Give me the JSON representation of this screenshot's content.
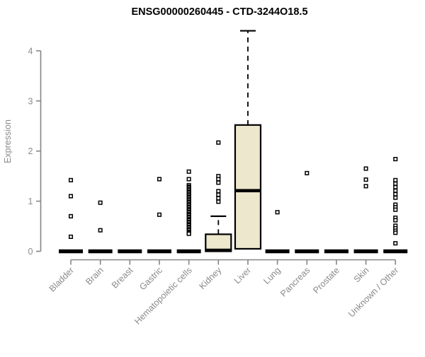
{
  "colors": {
    "title": "#000000",
    "axis": "#858585",
    "tick_text": "#8a8a8a",
    "box_fill": "#ece7cd",
    "box_stroke": "#000000",
    "point_stroke": "#000000",
    "point_fill": "#ffffff",
    "background": "#ffffff"
  },
  "chart_data": {
    "type": "boxplot",
    "title": "ENSG00000260445 - CTD-3244O18.5",
    "ylabel": "Expression",
    "xlabel": "",
    "ylim": [
      0,
      4.4
    ],
    "y_ticks": [
      0,
      1,
      2,
      3,
      4
    ],
    "grid": false,
    "legend": "none",
    "categories": [
      {
        "label": "Bladder",
        "box": {
          "q1": 0,
          "median": 0,
          "q3": 0,
          "whisker_high": null
        },
        "outliers": [
          1.42,
          1.1,
          0.7,
          0.29
        ]
      },
      {
        "label": "Brain",
        "box": {
          "q1": 0,
          "median": 0,
          "q3": 0,
          "whisker_high": null
        },
        "outliers": [
          0.97,
          0.42
        ]
      },
      {
        "label": "Breast",
        "box": {
          "q1": 0,
          "median": 0,
          "q3": 0,
          "whisker_high": null
        },
        "outliers": []
      },
      {
        "label": "Gastric",
        "box": {
          "q1": 0,
          "median": 0,
          "q3": 0,
          "whisker_high": null
        },
        "outliers": [
          1.44,
          0.73
        ]
      },
      {
        "label": "Hematopoietic cells",
        "box": {
          "q1": 0,
          "median": 0,
          "q3": 0,
          "whisker_high": null
        },
        "outliers": [
          1.59,
          1.44,
          1.32,
          1.29,
          1.27,
          1.24,
          1.22,
          1.19,
          1.17,
          1.14,
          1.12,
          1.09,
          1.07,
          1.04,
          1.02,
          0.99,
          0.97,
          0.94,
          0.92,
          0.89,
          0.87,
          0.84,
          0.82,
          0.79,
          0.77,
          0.74,
          0.72,
          0.69,
          0.67,
          0.64,
          0.62,
          0.59,
          0.57,
          0.54,
          0.52,
          0.49,
          0.47,
          0.44,
          0.42,
          0.39,
          0.37,
          0.35
        ]
      },
      {
        "label": "Kidney",
        "box": {
          "q1": 0,
          "median": 0.02,
          "q3": 0.34,
          "whisker_high": 0.7
        },
        "outliers": [
          2.17,
          1.5,
          1.44,
          1.37,
          1.2,
          1.13,
          1.06,
          0.99
        ]
      },
      {
        "label": "Liver",
        "box": {
          "q1": 0.05,
          "median": 1.21,
          "q3": 2.52,
          "whisker_high": 4.4
        },
        "outliers": []
      },
      {
        "label": "Lung",
        "box": {
          "q1": 0,
          "median": 0,
          "q3": 0,
          "whisker_high": null
        },
        "outliers": [
          0.78
        ]
      },
      {
        "label": "Pancreas",
        "box": {
          "q1": 0,
          "median": 0,
          "q3": 0,
          "whisker_high": null
        },
        "outliers": [
          1.56
        ]
      },
      {
        "label": "Prostate",
        "box": {
          "q1": 0,
          "median": 0,
          "q3": 0,
          "whisker_high": null
        },
        "outliers": []
      },
      {
        "label": "Skin",
        "box": {
          "q1": 0,
          "median": 0,
          "q3": 0,
          "whisker_high": null
        },
        "outliers": [
          1.65,
          1.43,
          1.3
        ]
      },
      {
        "label": "Unknown / Other",
        "box": {
          "q1": 0,
          "median": 0,
          "q3": 0,
          "whisker_high": null
        },
        "outliers": [
          1.84,
          1.42,
          1.35,
          1.28,
          1.21,
          1.14,
          1.07,
          0.93,
          0.88,
          0.83,
          0.67,
          0.62,
          0.51,
          0.46,
          0.41,
          0.37,
          0.16
        ]
      }
    ]
  }
}
